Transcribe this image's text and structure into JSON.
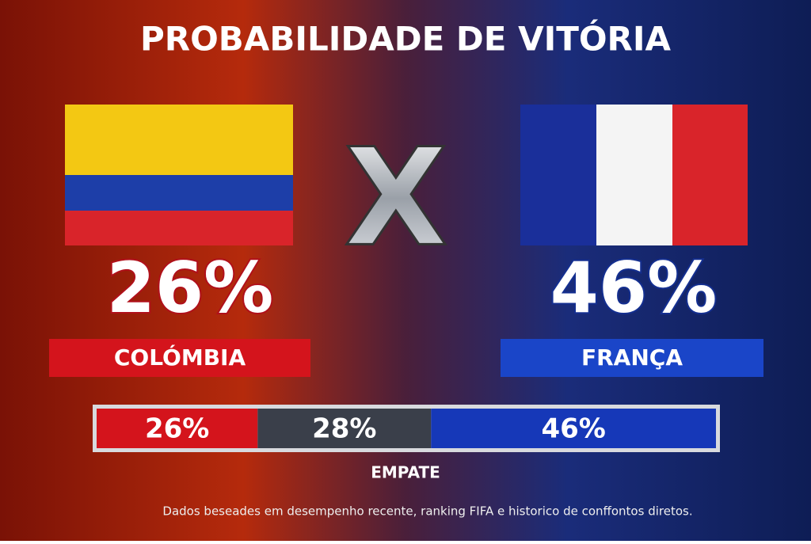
{
  "chart_data": {
    "type": "stacked_bar",
    "title": "PROBABILIDADE DE VITÓRIA",
    "versus": "X",
    "xlim": [
      0,
      100
    ],
    "series": [
      {
        "name": "COLÓMBIA",
        "color": "#d4141c",
        "values": [
          26
        ],
        "value_labels": [
          "26%"
        ]
      },
      {
        "name": "EMPATE",
        "color": "#3a3f4a",
        "values": [
          28
        ],
        "value_labels": [
          "28%"
        ]
      },
      {
        "name": "FRANÇA",
        "color": "#1638b8",
        "values": [
          46
        ],
        "value_labels": [
          "46%"
        ]
      }
    ],
    "note": "Dados beseades em desempenho recente, ranking FIFA e historico de conffontos diretos."
  }
}
